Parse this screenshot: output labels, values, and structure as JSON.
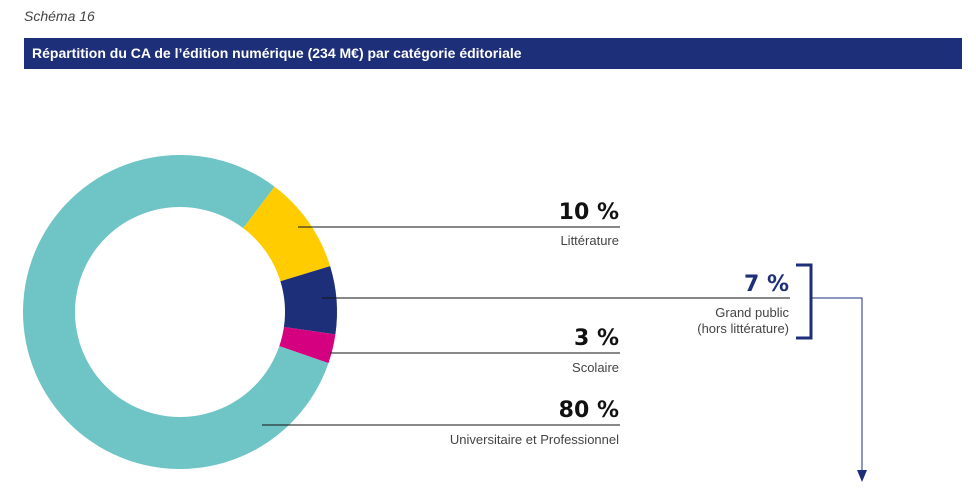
{
  "schema_label": "Schéma 16",
  "chart_data": {
    "type": "pie",
    "variant": "donut",
    "title": "Répartition du CA de l’édition numérique (234 M€) par catégorie éditoriale",
    "slices": [
      {
        "name": "Littérature",
        "value": 10,
        "label": "10 %",
        "color": "#ffcc00"
      },
      {
        "name": "Grand public (hors littérature)",
        "name_lines": [
          "Grand public",
          "(hors littérature)"
        ],
        "value": 7,
        "label": "7 %",
        "color": "#1e2f7a"
      },
      {
        "name": "Scolaire",
        "value": 3,
        "label": "3 %",
        "color": "#d5007f"
      },
      {
        "name": "Universitaire et Professionnel",
        "value": 80,
        "label": "80 %",
        "color": "#6fc4c6"
      }
    ]
  }
}
